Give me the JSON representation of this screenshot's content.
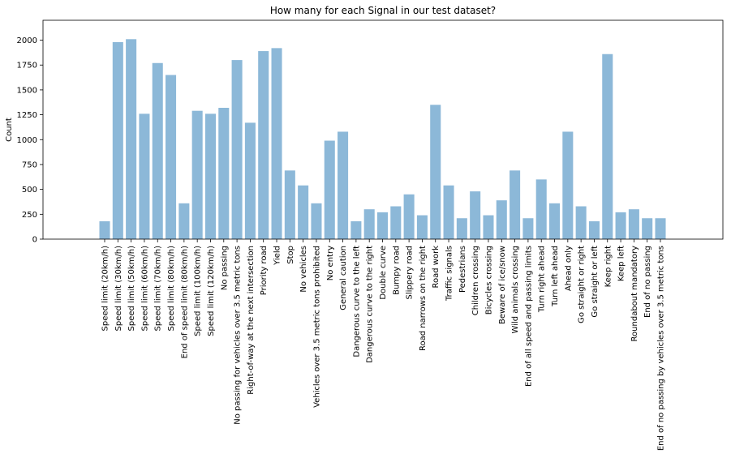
{
  "chart_data": {
    "type": "bar",
    "title": "How many for each Signal in our test dataset?",
    "xlabel": "",
    "ylabel": "Count",
    "ylim": [
      0,
      2200
    ],
    "yticks": [
      0,
      250,
      500,
      750,
      1000,
      1250,
      1500,
      1750,
      2000
    ],
    "grid": false,
    "bar_color": "#8cb8d8",
    "categories": [
      "Speed limit (20km/h)",
      "Speed limit (30km/h)",
      "Speed limit (50km/h)",
      "Speed limit (60km/h)",
      "Speed limit (70km/h)",
      "Speed limit (80km/h)",
      "End of speed limit (80km/h)",
      "Speed limit (100km/h)",
      "Speed limit (120km/h)",
      "No passing",
      "No passing for vehicles over 3.5 metric tons",
      "Right-of-way at the next intersection",
      "Priority road",
      "Yield",
      "Stop",
      "No vehicles",
      "Vehicles over 3.5 metric tons prohibited",
      "No entry",
      "General caution",
      "Dangerous curve to the left",
      "Dangerous curve to the right",
      "Double curve",
      "Bumpy road",
      "Slippery road",
      "Road narrows on the right",
      "Road work",
      "Traffic signals",
      "Pedestrians",
      "Children crossing",
      "Bicycles crossing",
      "Beware of ice/snow",
      "Wild animals crossing",
      "End of all speed and passing limits",
      "Turn right ahead",
      "Turn left ahead",
      "Ahead only",
      "Go straight or right",
      "Go straight or left",
      "Keep right",
      "Keep left",
      "Roundabout mandatory",
      "End of no passing",
      "End of no passing by vehicles over 3.5 metric tons"
    ],
    "values": [
      180,
      1980,
      2010,
      1260,
      1770,
      1650,
      360,
      1290,
      1260,
      1320,
      1800,
      1170,
      1890,
      1920,
      690,
      540,
      360,
      990,
      1080,
      180,
      300,
      270,
      330,
      450,
      240,
      1350,
      540,
      210,
      480,
      240,
      390,
      690,
      210,
      600,
      360,
      1080,
      330,
      180,
      1860,
      270,
      300,
      210,
      210
    ]
  }
}
